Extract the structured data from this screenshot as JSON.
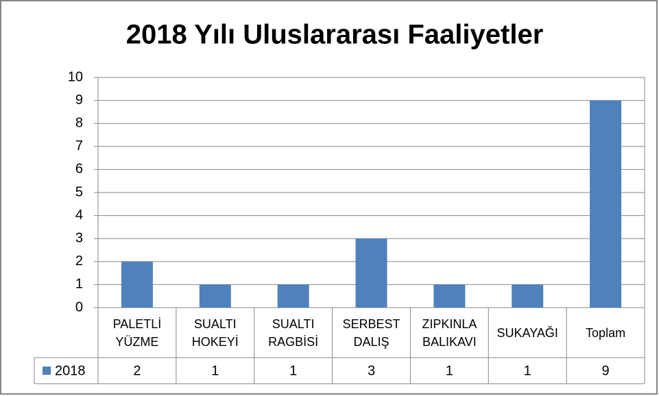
{
  "chart_data": {
    "type": "bar",
    "title": "2018 Yılı Uluslararası Faaliyetler",
    "categories": [
      "PALETLİ YÜZME",
      "SUALTI HOKEYİ",
      "SUALTI RAGBİSİ",
      "SERBEST DALIŞ",
      "ZIPKINLA BALIKAVI",
      "SUKAYAĞI",
      "Toplam"
    ],
    "series": [
      {
        "name": "2018",
        "color": "#4f81bd",
        "values": [
          2,
          1,
          1,
          3,
          1,
          1,
          9
        ]
      }
    ],
    "ylim": [
      0,
      10
    ],
    "yticks": [
      0,
      1,
      2,
      3,
      4,
      5,
      6,
      7,
      8,
      9,
      10
    ],
    "grid": true,
    "legend": "data-table"
  }
}
